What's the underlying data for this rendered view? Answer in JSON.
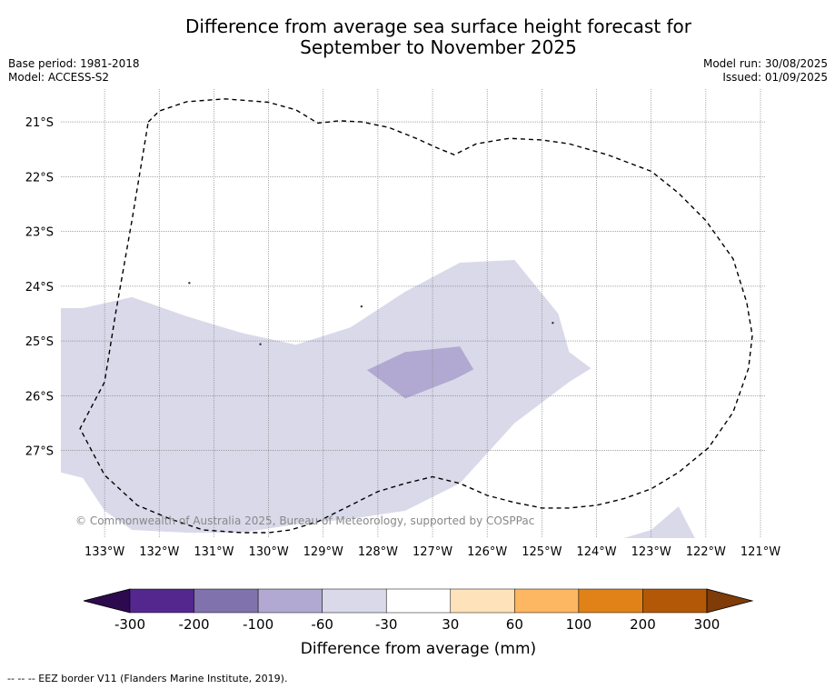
{
  "title_line1": "Difference from average sea surface height forecast for",
  "title_line2": "September to November 2025",
  "base_period": "Base period: 1981-2018",
  "model": "Model: ACCESS-S2",
  "model_run": "Model run: 30/08/2025",
  "issued": "Issued: 01/09/2025",
  "copyright": "© Commonwealth of Australia 2025, Bureau of Meteorology, supported by COSPPac",
  "footnote": "--  --  -- EEZ border V11 (Flanders Marine Institute, 2019).",
  "map": {
    "lat_labels": [
      "21°S",
      "22°S",
      "23°S",
      "24°S",
      "25°S",
      "26°S",
      "27°S"
    ],
    "lat_values": [
      -21,
      -22,
      -23,
      -24,
      -25,
      -26,
      -27
    ],
    "lon_labels": [
      "133°W",
      "132°W",
      "131°W",
      "130°W",
      "129°W",
      "128°W",
      "127°W",
      "126°W",
      "125°W",
      "124°W",
      "123°W",
      "122°W",
      "121°W"
    ],
    "lon_values": [
      -133,
      -132,
      -131,
      -130,
      -129,
      -128,
      -127,
      -126,
      -125,
      -124,
      -123,
      -122,
      -121
    ],
    "lon_range": [
      -133.8,
      -120.9
    ],
    "lat_range": [
      -28.6,
      -20.4
    ],
    "region_-60_-30": [
      [
        -133.8,
        -24.4
      ],
      [
        -133.4,
        -24.4
      ],
      [
        -132.5,
        -24.2
      ],
      [
        -131.5,
        -24.55
      ],
      [
        -130.5,
        -24.85
      ],
      [
        -129.5,
        -25.07
      ],
      [
        -128.5,
        -24.75
      ],
      [
        -127.5,
        -24.1
      ],
      [
        -126.5,
        -23.57
      ],
      [
        -125.5,
        -23.52
      ],
      [
        -124.7,
        -24.5
      ],
      [
        -124.5,
        -25.2
      ],
      [
        -124.1,
        -25.5
      ],
      [
        -124.5,
        -25.75
      ],
      [
        -125.5,
        -26.5
      ],
      [
        -126,
        -27.05
      ],
      [
        -126.5,
        -27.6
      ],
      [
        -127.5,
        -28.1
      ],
      [
        -128.5,
        -28.25
      ],
      [
        -129.5,
        -28.35
      ],
      [
        -130.5,
        -28.5
      ],
      [
        -131.5,
        -28.5
      ],
      [
        -132.5,
        -28.45
      ],
      [
        -133,
        -28.1
      ],
      [
        -133.4,
        -27.5
      ],
      [
        -133.8,
        -27.4
      ]
    ],
    "region_-60_-30_south": [
      [
        -123.5,
        -28.6
      ],
      [
        -123,
        -28.45
      ],
      [
        -122.5,
        -28.02
      ],
      [
        -122.2,
        -28.6
      ]
    ],
    "region_-100_-60": [
      [
        -128.2,
        -25.53
      ],
      [
        -127.5,
        -25.2
      ],
      [
        -126.5,
        -25.1
      ],
      [
        -126.25,
        -25.52
      ],
      [
        -126.6,
        -25.7
      ],
      [
        -127.5,
        -26.05
      ]
    ],
    "eez_border": [
      [
        -132.2,
        -21.0
      ],
      [
        -132,
        -20.8
      ],
      [
        -131.5,
        -20.63
      ],
      [
        -130.8,
        -20.58
      ],
      [
        -130,
        -20.64
      ],
      [
        -129.5,
        -20.78
      ],
      [
        -129.1,
        -21.02
      ],
      [
        -128.7,
        -20.98
      ],
      [
        -128.3,
        -21.0
      ],
      [
        -127.8,
        -21.1
      ],
      [
        -127.3,
        -21.3
      ],
      [
        -126.9,
        -21.48
      ],
      [
        -126.6,
        -21.6
      ],
      [
        -126.2,
        -21.4
      ],
      [
        -125.6,
        -21.3
      ],
      [
        -125,
        -21.33
      ],
      [
        -124.5,
        -21.4
      ],
      [
        -123.8,
        -21.6
      ],
      [
        -123,
        -21.9
      ],
      [
        -122.5,
        -22.3
      ],
      [
        -122,
        -22.8
      ],
      [
        -121.5,
        -23.5
      ],
      [
        -121.25,
        -24.3
      ],
      [
        -121.15,
        -24.9
      ],
      [
        -121.22,
        -25.5
      ],
      [
        -121.5,
        -26.3
      ],
      [
        -121.95,
        -26.95
      ],
      [
        -122.5,
        -27.4
      ],
      [
        -123,
        -27.7
      ],
      [
        -123.5,
        -27.88
      ],
      [
        -124,
        -28.0
      ],
      [
        -124.5,
        -28.05
      ],
      [
        -125,
        -28.05
      ],
      [
        -125.5,
        -27.95
      ],
      [
        -126,
        -27.82
      ],
      [
        -126.5,
        -27.6
      ],
      [
        -127,
        -27.48
      ],
      [
        -127.5,
        -27.6
      ],
      [
        -128,
        -27.75
      ],
      [
        -128.6,
        -28.05
      ],
      [
        -129.1,
        -28.3
      ],
      [
        -129.6,
        -28.45
      ],
      [
        -130,
        -28.5
      ],
      [
        -130.5,
        -28.5
      ],
      [
        -131.2,
        -28.45
      ],
      [
        -131.8,
        -28.25
      ],
      [
        -132.4,
        -28.0
      ],
      [
        -133,
        -27.45
      ],
      [
        -133.45,
        -26.6
      ],
      [
        -133,
        -25.75
      ],
      [
        -132.8,
        -24.5
      ],
      [
        -132.5,
        -22.8
      ],
      [
        -132.2,
        -21.0
      ]
    ]
  },
  "colorbar": {
    "title": "Difference from average (mm)",
    "labels": [
      "-300",
      "-200",
      "-100",
      "-60",
      "-30",
      "30",
      "60",
      "100",
      "200",
      "300"
    ],
    "colors": [
      "#2d0a4e",
      "#54278f",
      "#8072ac",
      "#b1a9d1",
      "#d9d9ea",
      "#ffffff",
      "#fee2b9",
      "#fdb661",
      "#e08218",
      "#b35806",
      "#7f3b08"
    ]
  },
  "colors": {
    "fill_-60_-30": "#d9d9ea",
    "fill_-100_-60": "#b1a9d1",
    "eez_line": "#000000",
    "grid": "#888888",
    "copyright_text": "#888888"
  }
}
